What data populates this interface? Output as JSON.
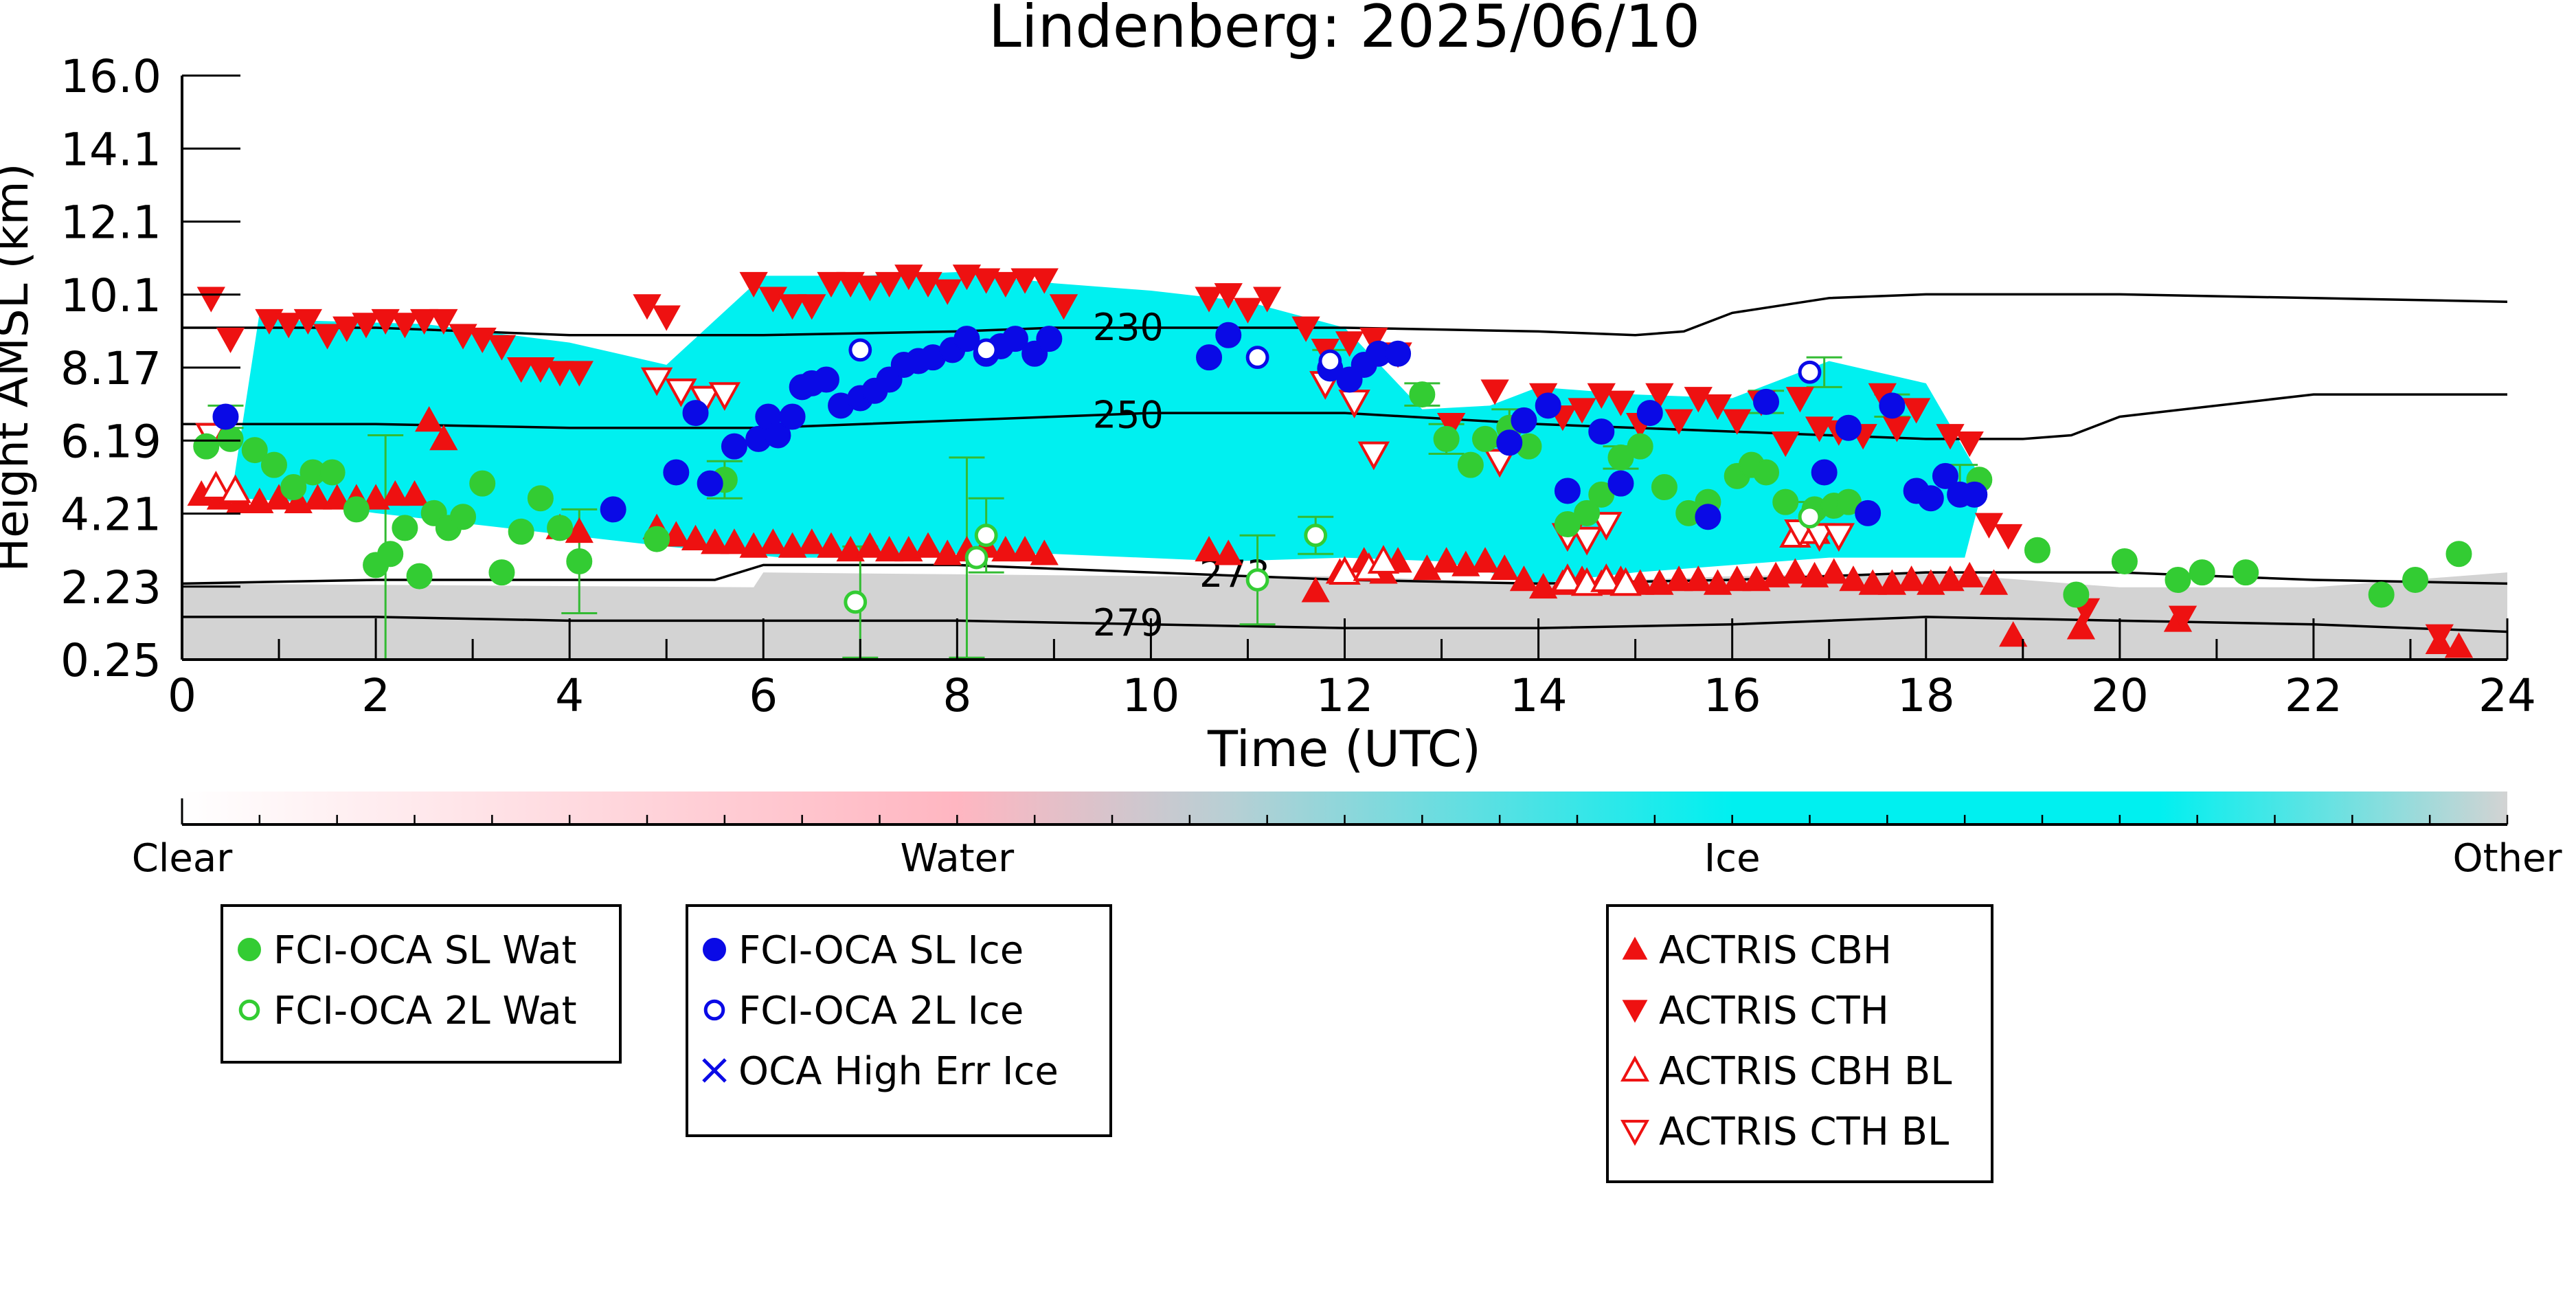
{
  "chart_data": {
    "type": "scatter",
    "title": "Lindenberg: 2025/06/10",
    "xlabel": "Time (UTC)",
    "ylabel": "Height AMSL (km)",
    "xlim": [
      0,
      24
    ],
    "ylim": [
      0.25,
      16.0
    ],
    "xticks": [
      "0",
      "2",
      "4",
      "6",
      "8",
      "10",
      "12",
      "14",
      "16",
      "18",
      "20",
      "22",
      "24"
    ],
    "yticks": [
      "0.25",
      "2.23",
      "4.21",
      "6.19",
      "8.17",
      "10.1",
      "12.1",
      "14.1",
      "16.0"
    ],
    "grid": false,
    "colorbar": {
      "labels": [
        "Clear",
        "Water",
        "Ice",
        "Other"
      ],
      "colors": [
        "#ffffff",
        "#ffb6c1",
        "#00f0f0",
        "#d3d3d3"
      ]
    },
    "background_classes": [
      {
        "class": "Other",
        "color": "#d3d3d3",
        "x": [
          0,
          0,
          5.9,
          6.0,
          10,
          12,
          14,
          16,
          18,
          20,
          22,
          24,
          24
        ],
        "y": [
          0.25,
          2.3,
          2.2,
          2.6,
          2.5,
          2.5,
          2.3,
          2.5,
          2.6,
          2.2,
          2.2,
          2.6,
          0.25
        ]
      },
      {
        "class": "Ice",
        "color": "#00f0f0",
        "x": [
          0.5,
          0.8,
          1.2,
          2.5,
          4,
          5,
          6,
          7,
          8,
          9,
          10,
          11,
          12,
          12.8,
          13.5,
          14,
          15,
          16,
          17,
          18,
          18.6,
          18.4,
          17,
          16,
          15,
          14,
          13,
          12,
          10.8,
          9,
          8,
          7,
          6.2,
          5,
          4,
          3,
          2,
          1.2,
          0.6
        ],
        "y": [
          4.5,
          9.6,
          9.4,
          9.3,
          8.8,
          8.2,
          10.6,
          10.6,
          10.7,
          10.4,
          10.2,
          9.9,
          9.2,
          7.0,
          7.1,
          7.6,
          7.4,
          7.3,
          8.3,
          7.7,
          5.0,
          3.0,
          3.0,
          2.8,
          2.6,
          2.3,
          2.9,
          3.0,
          2.9,
          3.1,
          3.1,
          3.0,
          3.0,
          3.3,
          3.6,
          3.9,
          4.2,
          4.5,
          4.6
        ]
      }
    ],
    "contours": [
      {
        "label": "230",
        "x": [
          0,
          2,
          4,
          6,
          8,
          9,
          10,
          12,
          14,
          15,
          15.5,
          16,
          17,
          18,
          20,
          22,
          24
        ],
        "y": [
          9.2,
          9.2,
          9.0,
          9.0,
          9.1,
          9.2,
          9.2,
          9.2,
          9.1,
          9.0,
          9.1,
          9.6,
          10.0,
          10.1,
          10.1,
          10.0,
          9.9
        ],
        "label_x": 9.4
      },
      {
        "label": "250",
        "x": [
          0,
          2,
          4,
          6,
          8,
          9,
          10,
          12,
          14,
          16,
          18,
          19,
          19.5,
          20,
          22,
          24
        ],
        "y": [
          6.6,
          6.6,
          6.5,
          6.5,
          6.7,
          6.8,
          6.9,
          6.9,
          6.6,
          6.4,
          6.2,
          6.2,
          6.3,
          6.8,
          7.4,
          7.4
        ],
        "label_x": 9.4
      },
      {
        "label": "273",
        "x": [
          0,
          2,
          4,
          5.5,
          6,
          8,
          10,
          12,
          14,
          16,
          18,
          20,
          22,
          24
        ],
        "y": [
          2.3,
          2.4,
          2.4,
          2.4,
          2.8,
          2.8,
          2.6,
          2.4,
          2.3,
          2.4,
          2.6,
          2.6,
          2.4,
          2.3
        ],
        "label_x": 10.5
      },
      {
        "label": "279",
        "x": [
          0,
          2,
          4,
          6,
          8,
          10,
          12,
          14,
          16,
          18,
          20,
          22,
          24
        ],
        "y": [
          1.4,
          1.4,
          1.3,
          1.3,
          1.3,
          1.2,
          1.1,
          1.1,
          1.2,
          1.4,
          1.3,
          1.2,
          1.0
        ],
        "label_x": 9.4
      }
    ],
    "series": [
      {
        "name": "FCI-OCA SL Wat",
        "marker": "circle-filled",
        "color": "#33cc33",
        "x": [
          0.25,
          0.5,
          0.75,
          0.95,
          1.15,
          1.35,
          1.55,
          1.8,
          2.0,
          2.15,
          2.3,
          2.45,
          2.6,
          2.75,
          2.9,
          3.1,
          3.3,
          3.5,
          3.7,
          3.9,
          4.1,
          4.9,
          5.6,
          12.8,
          13.05,
          13.3,
          13.45,
          13.7,
          13.9,
          14.3,
          14.5,
          14.65,
          14.85,
          15.05,
          15.3,
          15.55,
          15.75,
          16.05,
          16.2,
          16.35,
          16.55,
          16.85,
          17.05,
          17.2,
          18.55,
          19.15,
          19.55,
          20.05,
          20.6,
          20.85,
          21.3,
          22.7,
          23.05,
          23.5
        ],
        "y": [
          6.0,
          6.2,
          5.9,
          5.5,
          4.9,
          5.3,
          5.3,
          4.3,
          2.8,
          3.1,
          3.8,
          2.5,
          4.2,
          3.8,
          4.1,
          5.0,
          2.6,
          3.7,
          4.6,
          3.8,
          2.9,
          3.5,
          5.1,
          7.4,
          6.2,
          5.5,
          6.2,
          6.5,
          6.0,
          3.9,
          4.2,
          4.7,
          5.7,
          6.0,
          4.9,
          4.2,
          4.5,
          5.2,
          5.5,
          5.3,
          4.5,
          4.3,
          4.4,
          4.5,
          5.1,
          3.2,
          2.0,
          2.9,
          2.4,
          2.6,
          2.6,
          2.0,
          2.4,
          3.1
        ]
      },
      {
        "name": "FCI-OCA 2L Wat",
        "marker": "circle-open",
        "color": "#33cc33",
        "x": [
          6.95,
          8.2,
          8.3,
          11.1,
          11.7,
          16.8
        ],
        "y": [
          1.8,
          3.0,
          3.6,
          2.4,
          3.6,
          4.1
        ]
      },
      {
        "name": "FCI-OCA SL Ice",
        "marker": "circle-filled",
        "color": "#0a0ae6",
        "x": [
          0.45,
          4.45,
          5.1,
          5.3,
          5.45,
          5.7,
          5.95,
          6.05,
          6.15,
          6.3,
          6.4,
          6.5,
          6.65,
          6.8,
          7.0,
          7.15,
          7.3,
          7.45,
          7.6,
          7.75,
          7.95,
          8.1,
          8.3,
          8.45,
          8.6,
          8.8,
          8.95,
          10.6,
          10.8,
          11.85,
          12.05,
          12.2,
          12.35,
          12.55,
          13.7,
          13.85,
          14.1,
          14.3,
          14.65,
          14.85,
          15.15,
          15.75,
          16.35,
          16.95,
          17.2,
          17.4,
          17.65,
          17.9,
          18.05,
          18.2,
          18.35,
          18.5
        ],
        "y": [
          6.8,
          4.3,
          5.3,
          6.9,
          5.0,
          6.0,
          6.2,
          6.8,
          6.3,
          6.8,
          7.6,
          7.7,
          7.8,
          7.1,
          7.3,
          7.5,
          7.8,
          8.2,
          8.3,
          8.4,
          8.6,
          8.9,
          8.5,
          8.7,
          8.9,
          8.5,
          8.9,
          8.4,
          9.0,
          8.1,
          7.8,
          8.2,
          8.5,
          8.5,
          6.1,
          6.7,
          7.1,
          4.8,
          6.4,
          5.0,
          6.9,
          4.1,
          7.2,
          5.3,
          6.5,
          4.2,
          7.1,
          4.8,
          4.6,
          5.2,
          4.7,
          4.7
        ]
      },
      {
        "name": "FCI-OCA 2L Ice",
        "marker": "circle-open",
        "color": "#0a0ae6",
        "x": [
          7.0,
          8.3,
          11.1,
          11.85,
          16.8
        ],
        "y": [
          8.6,
          8.6,
          8.4,
          8.3,
          8.0
        ]
      },
      {
        "name": "OCA High Err Ice",
        "marker": "x",
        "color": "#0a0ae6",
        "x": [],
        "y": []
      },
      {
        "name": "ACTRIS CBH",
        "marker": "triangle-up",
        "color": "#ee1111",
        "x": [
          0.2,
          0.4,
          0.6,
          0.8,
          1.0,
          1.2,
          1.4,
          1.6,
          1.8,
          2.0,
          2.2,
          2.4,
          2.55,
          2.7,
          3.9,
          4.1,
          4.9,
          5.1,
          5.3,
          5.5,
          5.7,
          5.9,
          6.1,
          6.3,
          6.5,
          6.7,
          6.9,
          7.1,
          7.3,
          7.5,
          7.7,
          7.9,
          8.1,
          8.3,
          8.5,
          8.7,
          8.9,
          10.6,
          10.8,
          11.7,
          11.95,
          12.2,
          12.4,
          12.55,
          12.85,
          13.05,
          13.25,
          13.45,
          13.65,
          13.85,
          14.05,
          14.25,
          14.45,
          14.65,
          14.85,
          15.05,
          15.25,
          15.45,
          15.65,
          15.85,
          16.05,
          16.25,
          16.45,
          16.65,
          16.85,
          17.05,
          17.25,
          17.45,
          17.65,
          17.85,
          18.05,
          18.25,
          18.45,
          18.7,
          18.9,
          19.6,
          20.6,
          23.3,
          23.5
        ],
        "y": [
          4.7,
          4.6,
          4.5,
          4.5,
          4.6,
          4.5,
          4.6,
          4.6,
          4.6,
          4.6,
          4.7,
          4.7,
          6.7,
          6.2,
          3.8,
          3.7,
          3.8,
          3.6,
          3.5,
          3.4,
          3.4,
          3.3,
          3.4,
          3.3,
          3.4,
          3.3,
          3.2,
          3.3,
          3.2,
          3.2,
          3.3,
          3.1,
          3.2,
          3.3,
          3.2,
          3.2,
          3.1,
          3.2,
          3.1,
          2.1,
          2.6,
          2.9,
          2.6,
          2.9,
          2.7,
          2.9,
          2.8,
          2.9,
          2.7,
          2.4,
          2.2,
          2.3,
          2.4,
          2.3,
          2.4,
          2.3,
          2.3,
          2.4,
          2.4,
          2.3,
          2.4,
          2.4,
          2.5,
          2.6,
          2.5,
          2.6,
          2.4,
          2.3,
          2.3,
          2.4,
          2.3,
          2.4,
          2.5,
          2.3,
          0.9,
          1.1,
          1.3,
          0.7,
          0.6
        ]
      },
      {
        "name": "ACTRIS CTH",
        "marker": "triangle-down",
        "color": "#ee1111",
        "x": [
          0.3,
          0.5,
          0.9,
          1.1,
          1.3,
          1.5,
          1.7,
          1.9,
          2.1,
          2.3,
          2.5,
          2.7,
          2.9,
          3.1,
          3.3,
          3.5,
          3.7,
          3.9,
          4.1,
          4.8,
          5.0,
          5.9,
          6.1,
          6.3,
          6.5,
          6.7,
          6.9,
          7.1,
          7.3,
          7.5,
          7.7,
          7.9,
          8.1,
          8.3,
          8.5,
          8.7,
          8.9,
          9.1,
          10.6,
          10.8,
          11.0,
          11.2,
          11.6,
          11.8,
          12.05,
          12.3,
          12.55,
          13.1,
          13.55,
          14.05,
          14.25,
          14.45,
          14.65,
          14.85,
          15.05,
          15.25,
          15.45,
          15.65,
          15.85,
          16.05,
          16.3,
          16.55,
          16.7,
          16.9,
          17.1,
          17.35,
          17.55,
          17.7,
          17.9,
          18.25,
          18.45,
          18.65,
          18.85,
          19.65,
          20.65,
          23.3
        ],
        "y": [
          10.0,
          8.9,
          9.4,
          9.3,
          9.4,
          9.0,
          9.2,
          9.3,
          9.4,
          9.3,
          9.4,
          9.4,
          9.0,
          8.9,
          8.7,
          8.1,
          8.1,
          8.0,
          8.0,
          9.8,
          9.5,
          10.4,
          10.0,
          9.8,
          9.8,
          10.4,
          10.4,
          10.3,
          10.4,
          10.6,
          10.4,
          10.2,
          10.6,
          10.5,
          10.4,
          10.5,
          10.5,
          9.8,
          10.0,
          10.1,
          9.7,
          10.0,
          9.2,
          8.6,
          8.8,
          8.9,
          8.5,
          6.6,
          7.5,
          7.4,
          6.8,
          7.0,
          7.4,
          7.2,
          6.6,
          7.4,
          6.7,
          7.3,
          7.1,
          6.7,
          7.2,
          6.1,
          7.3,
          6.5,
          6.4,
          6.3,
          7.4,
          6.5,
          7.0,
          6.3,
          6.1,
          3.9,
          3.6,
          1.6,
          1.4,
          0.9
        ]
      },
      {
        "name": "ACTRIS CBH BL",
        "marker": "triangle-up-open",
        "color": "#ee1111",
        "x": [
          0.35,
          0.55,
          12.0,
          12.25,
          12.4,
          14.3,
          14.5,
          14.7,
          14.9,
          16.65,
          16.85
        ],
        "y": [
          4.9,
          4.8,
          2.6,
          2.7,
          2.9,
          2.4,
          2.3,
          2.4,
          2.3,
          3.6,
          3.7
        ]
      },
      {
        "name": "ACTRIS CTH BL",
        "marker": "triangle-down-open",
        "color": "#ee1111",
        "x": [
          0.3,
          4.9,
          5.15,
          5.4,
          5.6,
          11.8,
          12.1,
          12.3,
          13.6,
          14.3,
          14.5,
          14.7,
          16.7,
          16.9,
          17.1
        ],
        "y": [
          6.3,
          7.8,
          7.5,
          7.3,
          7.4,
          7.7,
          7.2,
          5.8,
          5.6,
          3.6,
          3.5,
          3.9,
          3.7,
          3.6,
          3.6
        ]
      }
    ],
    "error_bars": {
      "x": [
        2.1,
        4.1,
        5.6,
        7.0,
        8.1,
        8.3,
        11.1,
        11.7,
        12.8,
        13.05,
        13.7,
        14.85,
        16.8,
        16.35,
        0.45,
        11.85,
        16.95,
        17.65,
        18.35
      ],
      "y": [
        2.8,
        2.9,
        5.1,
        1.8,
        3.0,
        3.6,
        2.4,
        3.6,
        7.4,
        6.2,
        6.5,
        5.7,
        4.1,
        7.2,
        6.8,
        8.3,
        8.0,
        7.1,
        5.2
      ],
      "err": [
        3.5,
        1.4,
        0.5,
        1.5,
        2.7,
        1.0,
        1.2,
        0.5,
        0.3,
        0.4,
        0.5,
        0.3,
        0.4,
        0.3,
        0.3,
        0.3,
        0.4,
        0.3,
        0.3
      ]
    }
  },
  "legends": [
    {
      "items": [
        {
          "label": "FCI-OCA SL Wat",
          "marker": "circle-filled",
          "color": "#33cc33"
        },
        {
          "label": "FCI-OCA 2L Wat",
          "marker": "circle-open",
          "color": "#33cc33"
        }
      ]
    },
    {
      "items": [
        {
          "label": "FCI-OCA SL Ice",
          "marker": "circle-filled",
          "color": "#0a0ae6"
        },
        {
          "label": "FCI-OCA 2L Ice",
          "marker": "circle-open",
          "color": "#0a0ae6"
        },
        {
          "label": "OCA High Err Ice",
          "marker": "x",
          "color": "#0a0ae6"
        }
      ]
    },
    {
      "items": [
        {
          "label": "ACTRIS CBH",
          "marker": "triangle-up",
          "color": "#ee1111"
        },
        {
          "label": "ACTRIS CTH",
          "marker": "triangle-down",
          "color": "#ee1111"
        },
        {
          "label": "ACTRIS CBH BL",
          "marker": "triangle-up-open",
          "color": "#ee1111"
        },
        {
          "label": "ACTRIS CTH BL",
          "marker": "triangle-down-open",
          "color": "#ee1111"
        }
      ]
    }
  ]
}
